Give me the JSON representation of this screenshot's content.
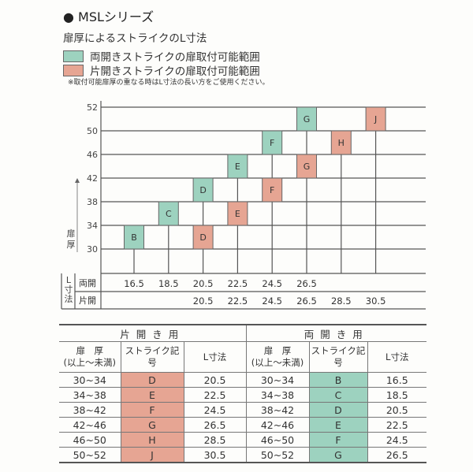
{
  "header": {
    "series_title": "MSLシリーズ",
    "subtitle": "扉厚によるストライクのL寸法"
  },
  "legend": [
    {
      "label": "両開きストライクの扉取付可能範囲",
      "color": "#9dd2bf"
    },
    {
      "label": "片開きストライクの扉取付可能範囲",
      "color": "#e6a593"
    }
  ],
  "note": "※取付可能扉厚の重なる時はL寸法の長い方をご使用ください。",
  "chart": {
    "y_label": "扉厚",
    "y_ticks": [
      30,
      34,
      38,
      42,
      46,
      50,
      52
    ],
    "l_label": "L寸法",
    "row_double_label": "両開",
    "row_single_label": "片開",
    "l_values": [
      "16.5",
      "18.5",
      "20.5",
      "22.5",
      "24.5",
      "26.5",
      "28.5",
      "30.5"
    ],
    "double_l": [
      "16.5",
      "18.5",
      "20.5",
      "22.5",
      "24.5",
      "26.5",
      "",
      ""
    ],
    "single_l": [
      "",
      "",
      "20.5",
      "22.5",
      "24.5",
      "26.5",
      "28.5",
      "30.5"
    ],
    "boxes": [
      {
        "code": "B",
        "type": "double",
        "l": "16.5",
        "from": 30,
        "to": 34
      },
      {
        "code": "C",
        "type": "double",
        "l": "18.5",
        "from": 34,
        "to": 38
      },
      {
        "code": "D",
        "type": "double",
        "l": "20.5",
        "from": 38,
        "to": 42
      },
      {
        "code": "E",
        "type": "double",
        "l": "22.5",
        "from": 42,
        "to": 46
      },
      {
        "code": "F",
        "type": "double",
        "l": "24.5",
        "from": 46,
        "to": 50
      },
      {
        "code": "G",
        "type": "double",
        "l": "26.5",
        "from": 50,
        "to": 52
      },
      {
        "code": "D",
        "type": "single",
        "l": "20.5",
        "from": 30,
        "to": 34
      },
      {
        "code": "E",
        "type": "single",
        "l": "22.5",
        "from": 34,
        "to": 38
      },
      {
        "code": "F",
        "type": "single",
        "l": "24.5",
        "from": 38,
        "to": 42
      },
      {
        "code": "G",
        "type": "single",
        "l": "26.5",
        "from": 42,
        "to": 46
      },
      {
        "code": "H",
        "type": "single",
        "l": "28.5",
        "from": 46,
        "to": 50
      },
      {
        "code": "J",
        "type": "single",
        "l": "30.5",
        "from": 50,
        "to": 52
      }
    ]
  },
  "table": {
    "single_header": "片開き用",
    "double_header": "両開き用",
    "col_thickness_1": "扉　厚",
    "col_thickness_2": "(以上～未満)",
    "col_code": "ストライク記号",
    "col_l": "L寸法",
    "single_rows": [
      {
        "range": "30~34",
        "code": "D",
        "l": "20.5"
      },
      {
        "range": "34~38",
        "code": "E",
        "l": "22.5"
      },
      {
        "range": "38~42",
        "code": "F",
        "l": "24.5"
      },
      {
        "range": "42~46",
        "code": "G",
        "l": "26.5"
      },
      {
        "range": "46~50",
        "code": "H",
        "l": "28.5"
      },
      {
        "range": "50~52",
        "code": "J",
        "l": "30.5"
      }
    ],
    "double_rows": [
      {
        "range": "30~34",
        "code": "B",
        "l": "16.5"
      },
      {
        "range": "34~38",
        "code": "C",
        "l": "18.5"
      },
      {
        "range": "38~42",
        "code": "D",
        "l": "20.5"
      },
      {
        "range": "42~46",
        "code": "E",
        "l": "22.5"
      },
      {
        "range": "46~50",
        "code": "F",
        "l": "24.5"
      },
      {
        "range": "50~52",
        "code": "G",
        "l": "26.5"
      }
    ]
  }
}
